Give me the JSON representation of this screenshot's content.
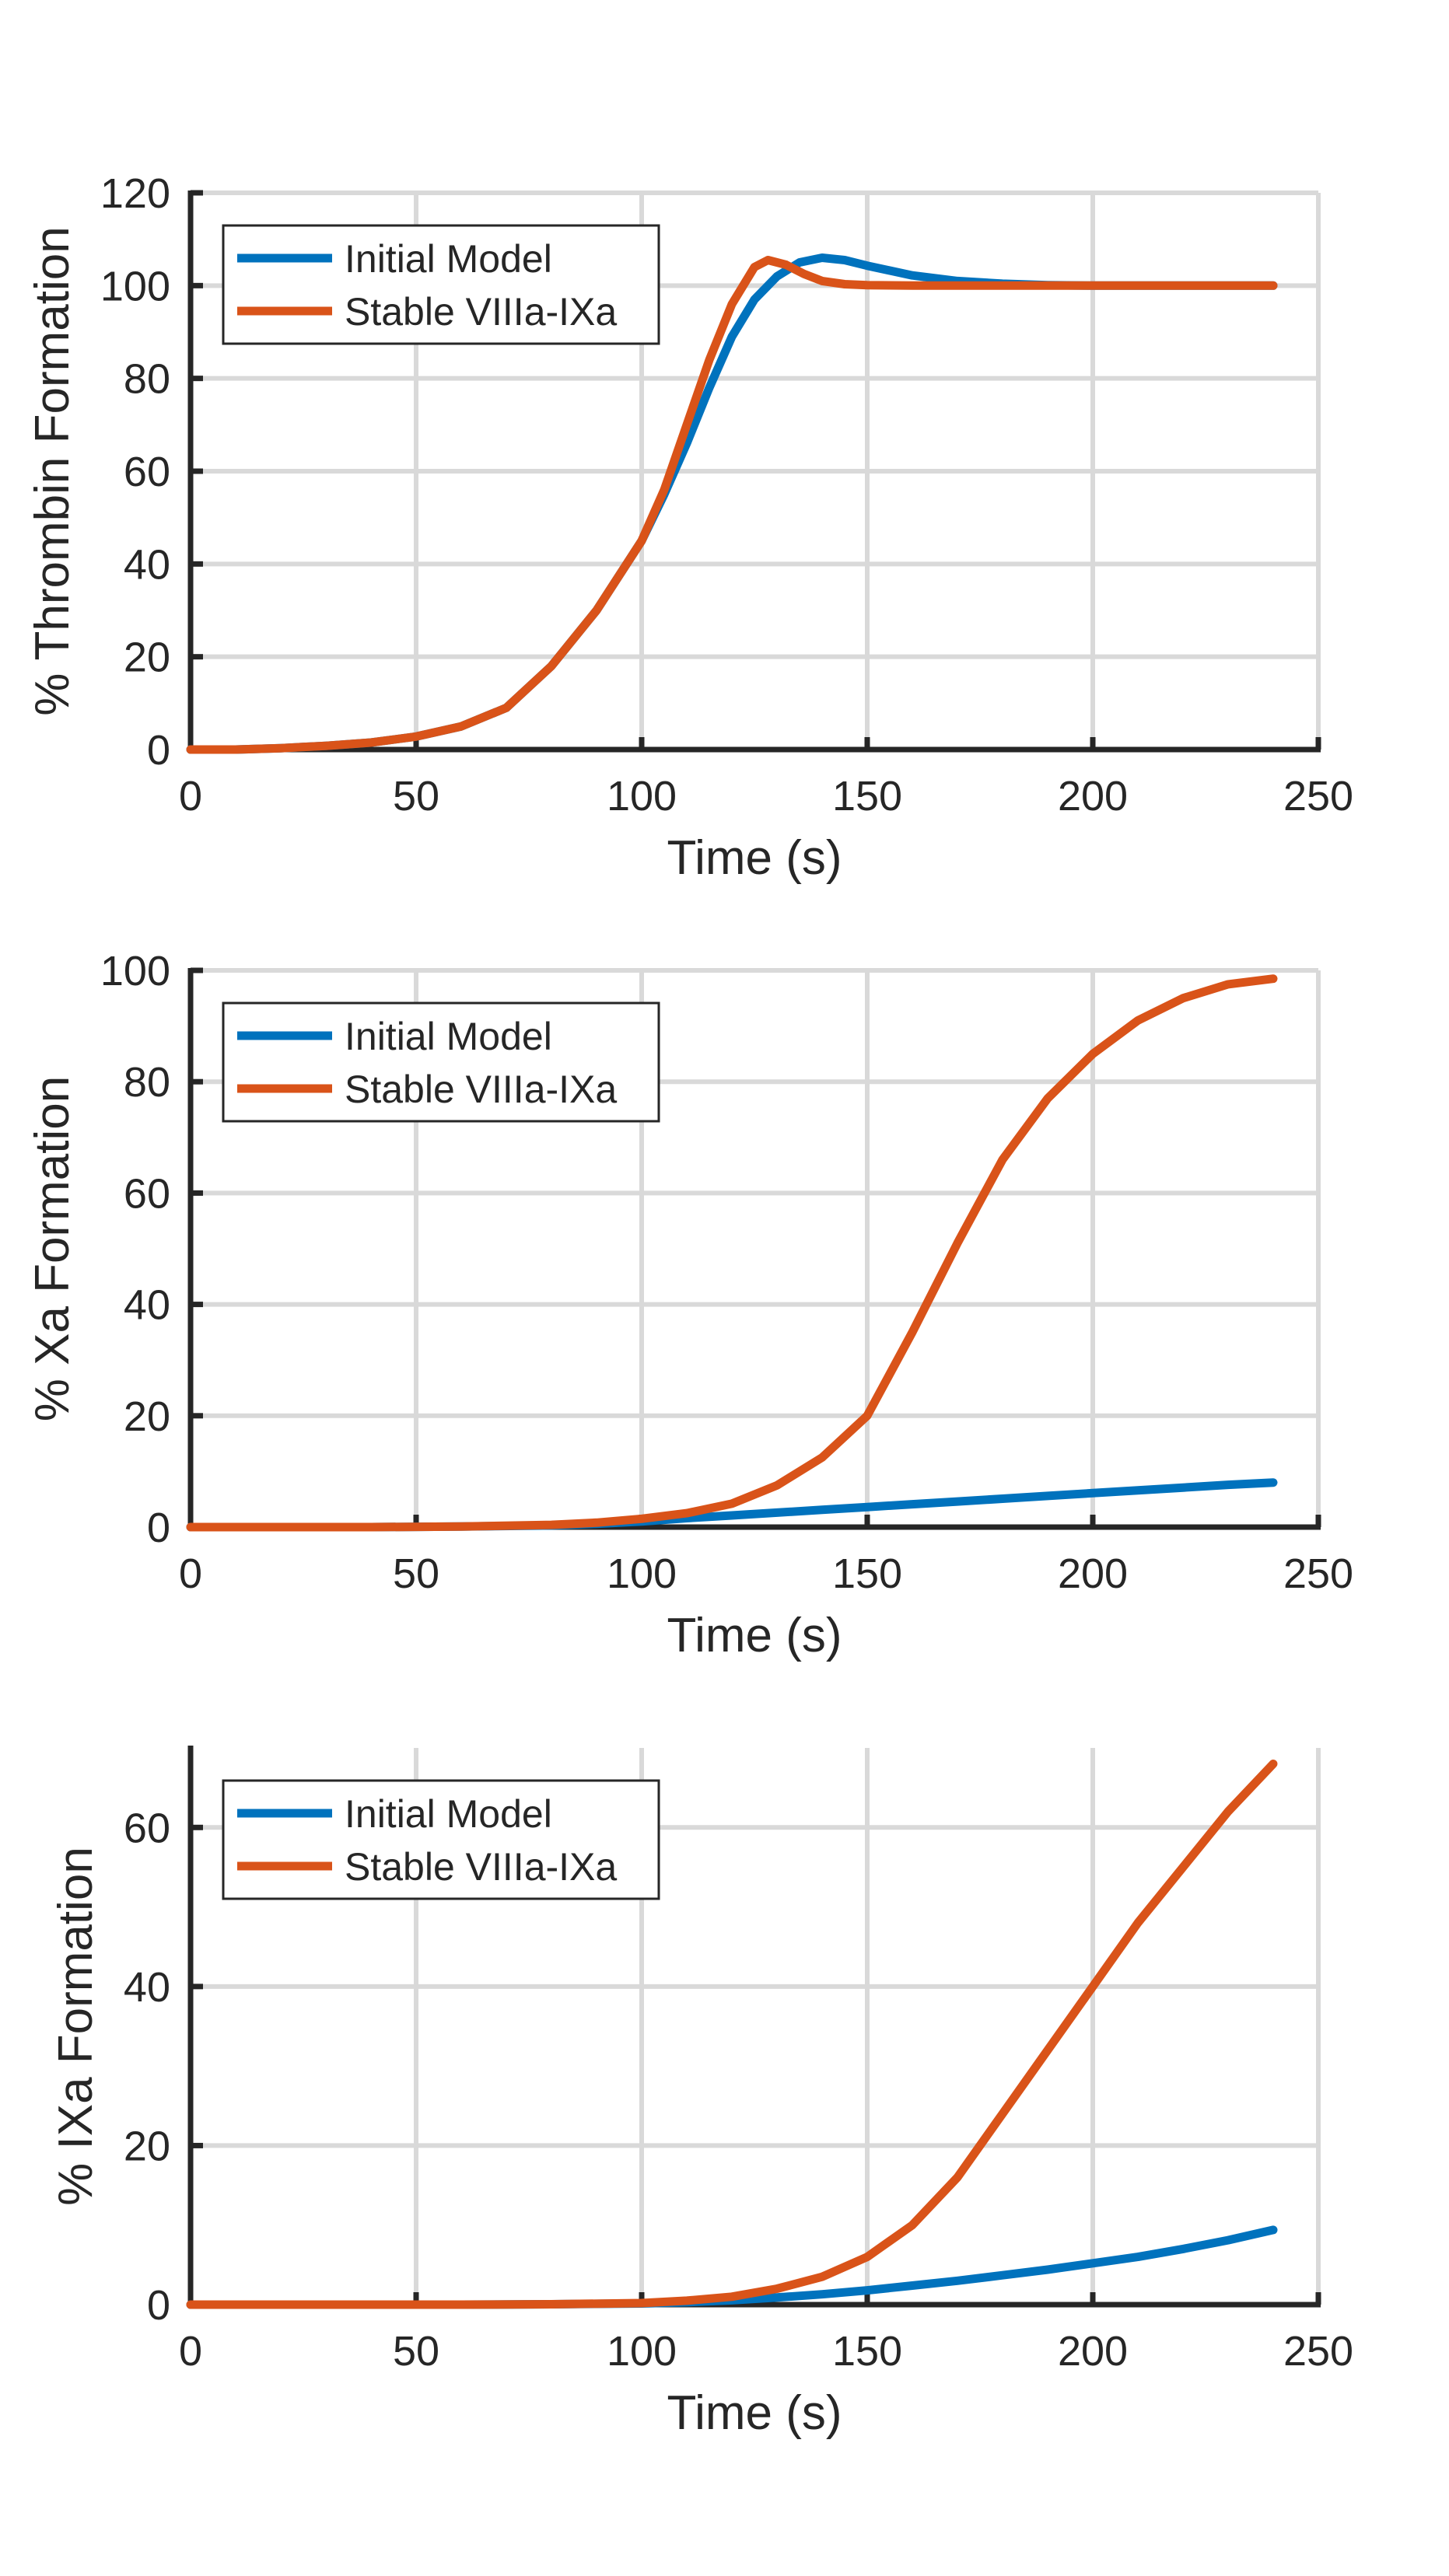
{
  "colors": {
    "initial_model": "#0072BD",
    "stable_viiia_ixa": "#D95319",
    "axis": "#262626",
    "grid": "#d9d9d9"
  },
  "chart_data": [
    {
      "type": "line",
      "xlabel": "Time (s)",
      "ylabel": "% Thrombin Formation",
      "xlim": [
        0,
        250
      ],
      "ylim": [
        0,
        120
      ],
      "xticks": [
        0,
        50,
        100,
        150,
        200,
        250
      ],
      "yticks": [
        0,
        20,
        40,
        60,
        80,
        100,
        120
      ],
      "grid": true,
      "legend": "top-left",
      "series": [
        {
          "name": "Initial Model",
          "color": "#0072BD",
          "x": [
            0,
            10,
            20,
            30,
            40,
            50,
            60,
            70,
            80,
            90,
            100,
            105,
            110,
            115,
            120,
            125,
            130,
            135,
            140,
            145,
            150,
            160,
            170,
            180,
            190,
            200,
            210,
            220,
            230,
            240
          ],
          "y": [
            0,
            0,
            0.3,
            0.8,
            1.5,
            2.8,
            5,
            9,
            18,
            30,
            45,
            55,
            66,
            78,
            89,
            97,
            102,
            105,
            106,
            105.5,
            104.3,
            102.2,
            101,
            100.4,
            100.1,
            100,
            100,
            100,
            100,
            100
          ]
        },
        {
          "name": "Stable VIIIa-IXa",
          "color": "#D95319",
          "x": [
            0,
            10,
            20,
            30,
            40,
            50,
            60,
            70,
            80,
            90,
            100,
            105,
            110,
            115,
            120,
            125,
            128,
            132,
            136,
            140,
            145,
            150,
            160,
            170,
            180,
            190,
            200,
            210,
            220,
            230,
            240
          ],
          "y": [
            0,
            0,
            0.3,
            0.8,
            1.5,
            2.8,
            5,
            9,
            18,
            30,
            45,
            56,
            70,
            84,
            96,
            104,
            105.5,
            104.5,
            102.5,
            101,
            100.3,
            100.1,
            100,
            100,
            100,
            100,
            100,
            100,
            100,
            100,
            100
          ]
        }
      ]
    },
    {
      "type": "line",
      "xlabel": "Time (s)",
      "ylabel": "% Xa Formation",
      "xlim": [
        0,
        250
      ],
      "ylim": [
        0,
        100
      ],
      "xticks": [
        0,
        50,
        100,
        150,
        200,
        250
      ],
      "yticks": [
        0,
        20,
        40,
        60,
        80,
        100
      ],
      "grid": true,
      "legend": "top-left",
      "series": [
        {
          "name": "Initial Model",
          "color": "#0072BD",
          "x": [
            0,
            20,
            40,
            60,
            80,
            90,
            100,
            110,
            120,
            130,
            140,
            150,
            160,
            170,
            180,
            190,
            200,
            210,
            220,
            230,
            240
          ],
          "y": [
            0,
            0,
            0,
            0.1,
            0.3,
            0.6,
            1,
            1.6,
            2.1,
            2.6,
            3.1,
            3.6,
            4.1,
            4.6,
            5.1,
            5.6,
            6.1,
            6.6,
            7.1,
            7.6,
            8
          ]
        },
        {
          "name": "Stable VIIIa-IXa",
          "color": "#D95319",
          "x": [
            0,
            20,
            40,
            60,
            80,
            90,
            100,
            110,
            120,
            130,
            140,
            150,
            160,
            170,
            180,
            190,
            200,
            210,
            220,
            230,
            240
          ],
          "y": [
            0,
            0,
            0,
            0.1,
            0.4,
            0.8,
            1.5,
            2.5,
            4.2,
            7.5,
            12.5,
            20,
            35,
            51,
            66,
            77,
            85,
            91,
            95,
            97.5,
            98.5
          ]
        }
      ]
    },
    {
      "type": "line",
      "xlabel": "Time (s)",
      "ylabel": "% IXa Formation",
      "xlim": [
        0,
        250
      ],
      "ylim": [
        0,
        70
      ],
      "xticks": [
        0,
        50,
        100,
        150,
        200,
        250
      ],
      "yticks": [
        0,
        20,
        40,
        60
      ],
      "grid": true,
      "legend": "top-left",
      "series": [
        {
          "name": "Initial Model",
          "color": "#0072BD",
          "x": [
            0,
            20,
            40,
            60,
            80,
            100,
            110,
            120,
            130,
            140,
            150,
            160,
            170,
            180,
            190,
            200,
            210,
            220,
            230,
            240
          ],
          "y": [
            0,
            0,
            0,
            0,
            0.05,
            0.15,
            0.3,
            0.55,
            0.9,
            1.3,
            1.8,
            2.4,
            3,
            3.7,
            4.4,
            5.2,
            6,
            7,
            8.1,
            9.4
          ]
        },
        {
          "name": "Stable VIIIa-IXa",
          "color": "#D95319",
          "x": [
            0,
            20,
            40,
            60,
            80,
            100,
            110,
            120,
            130,
            140,
            150,
            160,
            170,
            180,
            190,
            200,
            210,
            220,
            230,
            240
          ],
          "y": [
            0,
            0,
            0,
            0,
            0.05,
            0.2,
            0.5,
            1,
            2,
            3.5,
            6,
            10,
            16,
            24,
            32,
            40,
            48,
            55,
            62,
            68
          ]
        }
      ]
    }
  ]
}
